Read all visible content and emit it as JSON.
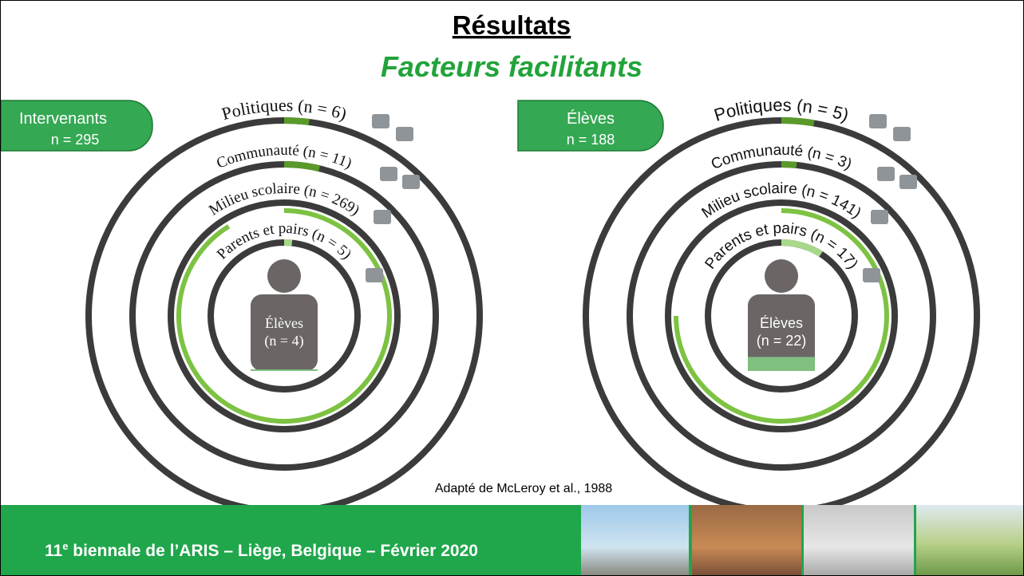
{
  "title": "Résultats",
  "subtitle": "Facteurs facilitants",
  "panels": [
    {
      "badge": {
        "label": "Intervenants",
        "n_label": "n = 295",
        "n": 295
      },
      "rings": [
        {
          "label": "Politiques (n = 6)",
          "n": 6
        },
        {
          "label": "Communauté (n = 11)",
          "n": 11
        },
        {
          "label": "Milieu scolaire (n = 269)",
          "n": 269
        },
        {
          "label": "Parents et pairs (n = 5)",
          "n": 5
        }
      ],
      "center": {
        "label": "Élèves",
        "n_label": "(n = 4)",
        "n": 4
      }
    },
    {
      "badge": {
        "label": "Élèves",
        "n_label": "n = 188",
        "n": 188
      },
      "rings": [
        {
          "label": "Politiques (n = 5)",
          "n": 5
        },
        {
          "label": "Communauté (n = 3)",
          "n": 3
        },
        {
          "label": "Milieu scolaire (n = 141)",
          "n": 141
        },
        {
          "label": "Parents et pairs (n = 17)",
          "n": 17
        }
      ],
      "center": {
        "label": "Élèves",
        "n_label": "(n = 22)",
        "n": 22
      }
    }
  ],
  "citation": "Adapté de McLeroy et al., 1988",
  "footer": {
    "number": "11",
    "superscript": "e",
    "text": " biennale de l’ARIS – Liège, Belgique – Février 2020"
  }
}
